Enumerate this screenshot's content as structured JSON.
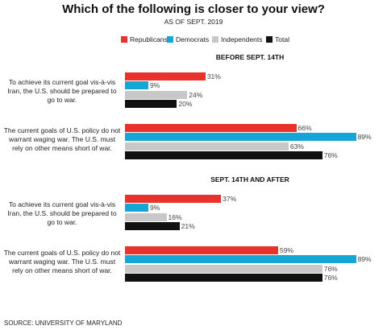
{
  "title": "Which of the following is closer to your view?",
  "subtitle": "AS OF SEPT. 2019",
  "source": "SOURCE: UNIVERSITY OF MARYLAND",
  "chart_data": [
    {
      "type": "bar",
      "orientation": "horizontal",
      "title": "BEFORE SEPT. 14TH",
      "categories": [
        "To achieve its current goal vis-à-vis Iran, the U.S. should be prepared to go to war.",
        "The current goals of U.S. policy do not warrant waging war. The U.S. must rely on other means short of war."
      ],
      "series": [
        {
          "name": "Republicans",
          "color": "#e8322b",
          "values": [
            31,
            66
          ],
          "value_labels": [
            "31%",
            "66%"
          ]
        },
        {
          "name": "Democrats",
          "color": "#16a6d6",
          "values": [
            9,
            89
          ],
          "value_labels": [
            "9%",
            "89%"
          ]
        },
        {
          "name": "Independents",
          "color": "#c8c8c8",
          "values": [
            24,
            63
          ],
          "value_labels": [
            "24%",
            "63%"
          ]
        },
        {
          "name": "Total",
          "color": "#111111",
          "values": [
            20,
            76
          ],
          "value_labels": [
            "20%",
            "76%"
          ]
        }
      ]
    },
    {
      "type": "bar",
      "orientation": "horizontal",
      "title": "SEPT. 14TH AND AFTER",
      "categories": [
        "To achieve its current goal vis-à-vis Iran, the U.S. should be prepared to go to war.",
        "The current goals of U.S. policy do not warrant waging war. The U.S. must rely on other means short of war."
      ],
      "series": [
        {
          "color": "#e8322b",
          "values": [
            37,
            59
          ],
          "value_labels": [
            "37%",
            "59%"
          ]
        },
        {
          "color": "#16a6d6",
          "values": [
            9,
            89
          ],
          "value_labels": [
            "9%",
            "89%"
          ]
        },
        {
          "color": "#c8c8c8",
          "values": [
            16,
            76
          ],
          "value_labels": [
            "16%",
            "76%"
          ]
        },
        {
          "color": "#111111",
          "values": [
            21,
            76
          ],
          "value_labels": [
            "21%",
            "76%"
          ]
        }
      ]
    }
  ]
}
